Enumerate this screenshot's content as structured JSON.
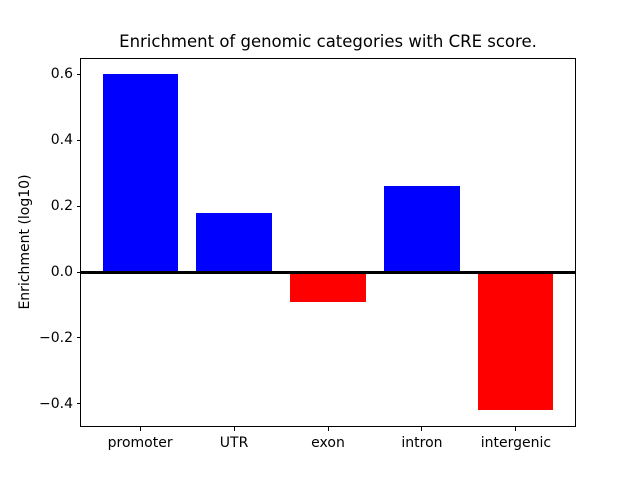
{
  "chart_data": {
    "type": "bar",
    "title": "Enrichment of genomic categories with CRE score.",
    "ylabel": "Enrichment (log10)",
    "xlabel": "",
    "categories": [
      "promoter",
      "UTR",
      "exon",
      "intron",
      "intergenic"
    ],
    "values": [
      0.6,
      0.18,
      -0.09,
      0.26,
      -0.42
    ],
    "bar_width": 0.8,
    "baseline": 0,
    "colors": {
      "positive": "#0000ff",
      "negative": "#ff0000",
      "baseline_line": "#000000",
      "axes": "#000000",
      "text": "#000000"
    },
    "yticks": [
      {
        "value": 0.6,
        "label": "0.6"
      },
      {
        "value": 0.4,
        "label": "0.4"
      },
      {
        "value": 0.2,
        "label": "0.2"
      },
      {
        "value": 0.0,
        "label": "0.0"
      },
      {
        "value": -0.2,
        "label": "−0.2"
      },
      {
        "value": -0.4,
        "label": "−0.4"
      }
    ],
    "ylim": [
      -0.471,
      0.651
    ],
    "xlim": [
      -0.64,
      4.64
    ],
    "grid": false
  }
}
